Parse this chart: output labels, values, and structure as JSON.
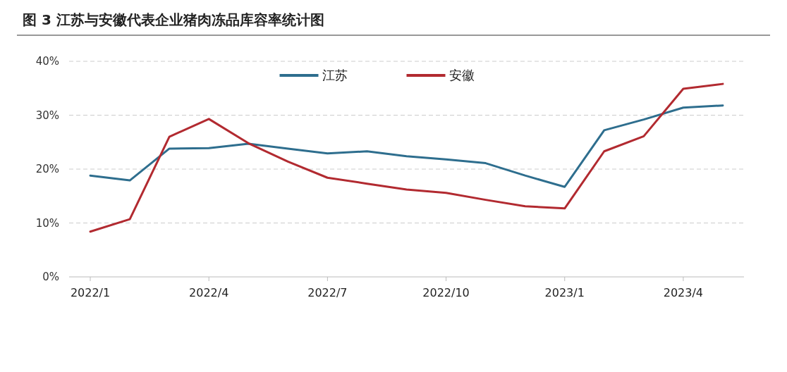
{
  "chart_data": {
    "type": "line",
    "title": "图 3 江苏与安徽代表企业猪肉冻品库容率统计图",
    "categories": [
      "2022/1",
      null,
      null,
      "2022/4",
      null,
      null,
      "2022/7",
      null,
      null,
      "2022/10",
      null,
      null,
      "2023/1",
      null,
      null,
      "2023/4",
      null
    ],
    "series": [
      {
        "name": "江苏",
        "color": "#2e6e8e",
        "values": [
          18.8,
          17.9,
          23.8,
          23.9,
          24.7,
          23.8,
          22.9,
          23.3,
          22.4,
          21.8,
          21.1,
          18.8,
          16.7,
          27.2,
          29.2,
          31.4,
          31.8
        ]
      },
      {
        "name": "安徽",
        "color": "#b22a30",
        "values": [
          8.4,
          10.7,
          26.0,
          29.3,
          24.8,
          21.4,
          18.4,
          17.3,
          16.2,
          15.6,
          14.3,
          13.1,
          12.7,
          23.3,
          26.1,
          34.9,
          35.8
        ]
      }
    ],
    "ylim": [
      0,
      40
    ],
    "yticks": [
      {
        "value": 0,
        "label": "0%"
      },
      {
        "value": 10,
        "label": "10%"
      },
      {
        "value": 20,
        "label": "20%"
      },
      {
        "value": 30,
        "label": "30%"
      },
      {
        "value": 40,
        "label": "40%"
      }
    ],
    "grid": "y",
    "legend": "top"
  }
}
